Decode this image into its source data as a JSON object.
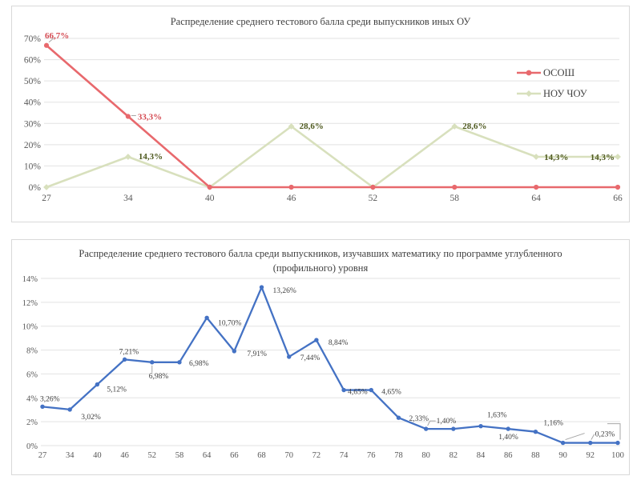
{
  "chart_data": [
    {
      "type": "line",
      "title": "Распределение среднего тестового балла среди выпускников иных ОУ",
      "categories": [
        "27",
        "34",
        "40",
        "46",
        "52",
        "58",
        "64",
        "66"
      ],
      "xlabel": "",
      "ylabel": "",
      "y_axis": {
        "min": 0,
        "max": 70,
        "step": 10,
        "suffix": "%"
      },
      "grid": "horizontal",
      "legend_position": "right",
      "series": [
        {
          "name": "ОСОШ",
          "color": "#e8696d",
          "label_color": "#d44a52",
          "marker": "circle",
          "values": [
            66.7,
            33.3,
            0,
            0,
            0,
            0,
            0,
            0
          ],
          "labels": [
            "66,7%",
            "33,3%",
            "",
            "",
            "",
            "",
            "",
            ""
          ],
          "label_offsets": [
            [
              -2,
              -9
            ],
            [
              12,
              4
            ],
            null,
            null,
            null,
            null,
            null,
            null
          ],
          "label_anchors": [
            "s",
            "s",
            null,
            null,
            null,
            null,
            null,
            null
          ],
          "leaders": [
            [
              [
                3,
                -4
              ],
              [
                9,
                -9
              ]
            ],
            [
              [
                4,
                -1
              ],
              [
                10,
                -1
              ]
            ],
            null,
            null,
            null,
            null,
            null,
            null
          ]
        },
        {
          "name": "НОУ ЧОУ",
          "color": "#d8e0bd",
          "label_color": "#4f5a20",
          "marker": "diamond",
          "values": [
            0,
            14.3,
            0,
            28.6,
            0,
            28.6,
            14.3,
            14.3
          ],
          "labels": [
            "",
            "14,3%",
            "",
            "28,6%",
            "",
            "28,6%",
            "14,3%",
            "14,3%"
          ],
          "label_offsets": [
            null,
            [
              13,
              3
            ],
            null,
            [
              10,
              3
            ],
            null,
            [
              10,
              3
            ],
            [
              10,
              4
            ],
            [
              -4,
              4
            ]
          ],
          "label_anchors": [
            null,
            "s",
            null,
            "s",
            null,
            "s",
            "s",
            "e"
          ],
          "leaders": [
            null,
            null,
            null,
            null,
            null,
            null,
            null,
            null
          ]
        }
      ]
    },
    {
      "type": "line",
      "title": "Распределение среднего тестового балла среди выпускников, изучавших математику по программе углубленного (профильного) уровня",
      "title_lines": [
        "Распределение среднего тестового балла среди выпускников, изучавших математику по программе углубленного",
        "(профильного) уровня"
      ],
      "categories": [
        "27",
        "34",
        "40",
        "46",
        "52",
        "58",
        "64",
        "66",
        "68",
        "70",
        "72",
        "74",
        "76",
        "78",
        "80",
        "82",
        "84",
        "86",
        "88",
        "90",
        "92",
        "100"
      ],
      "xlabel": "",
      "ylabel": "",
      "y_axis": {
        "min": 0,
        "max": 14,
        "step": 2,
        "suffix": "%"
      },
      "grid": "horizontal",
      "legend_position": "none",
      "series": [
        {
          "name": "",
          "color": "#4472c4",
          "label_color": "#3f3f3f",
          "marker": "circle",
          "values": [
            3.26,
            3.02,
            5.12,
            7.21,
            6.98,
            6.98,
            10.7,
            7.91,
            13.26,
            7.44,
            8.84,
            4.65,
            4.65,
            2.33,
            1.4,
            1.4,
            1.63,
            1.4,
            1.16,
            0.23,
            0.23,
            0.23
          ],
          "labels": [
            "3,26%",
            "3,02%",
            "5,12%",
            "7,21%",
            "6,98%",
            "6,98%",
            "10,70%",
            "7,91%",
            "13,26%",
            "7,44%",
            "8,84%",
            "4,65%",
            "4,65%",
            "2,33%",
            "1,40%",
            "",
            "1,63%",
            "1,40%",
            "1,16%",
            "",
            "0,23%",
            ""
          ],
          "label_offsets": [
            [
              -3,
              -7
            ],
            [
              14,
              12
            ],
            [
              12,
              9
            ],
            [
              -7,
              -7
            ],
            [
              -4,
              20
            ],
            [
              12,
              4
            ],
            [
              14,
              9
            ],
            [
              16,
              6
            ],
            [
              14,
              7
            ],
            [
              14,
              4
            ],
            [
              15,
              6
            ],
            [
              5,
              5
            ],
            [
              13,
              5
            ],
            [
              13,
              4
            ],
            [
              13,
              -7
            ],
            null,
            [
              8,
              -11
            ],
            [
              -12,
              13
            ],
            [
              10,
              -8
            ],
            null,
            [
              6,
              -8
            ],
            null
          ],
          "label_anchors": [
            "s",
            "s",
            "s",
            "s",
            "s",
            "s",
            "s",
            "s",
            "s",
            "s",
            "s",
            "s",
            "s",
            "s",
            "s",
            null,
            "s",
            "s",
            "s",
            null,
            "s",
            null
          ],
          "leaders": [
            null,
            null,
            null,
            null,
            [
              [
                0,
                4
              ],
              [
                0,
                13
              ]
            ],
            null,
            null,
            null,
            null,
            null,
            null,
            null,
            null,
            null,
            [
              [
                12,
                -10
              ],
              [
                5,
                -10
              ],
              [
                2,
                -4
              ]
            ],
            null,
            null,
            null,
            null,
            [
              [
                3,
                -4
              ],
              [
                27,
                -12
              ]
            ],
            [
              [
                1,
                -4
              ],
              [
                5,
                -11
              ]
            ],
            [
              [
                -13,
                -24
              ],
              [
                3,
                -24
              ],
              [
                3,
                -4
              ]
            ]
          ]
        }
      ]
    }
  ]
}
